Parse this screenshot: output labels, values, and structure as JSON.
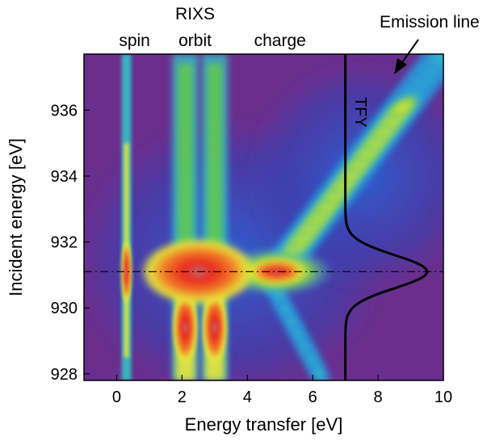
{
  "chart_data": {
    "type": "heatmap",
    "title": "",
    "xlabel": "Energy transfer [eV]",
    "ylabel": "Incident energy [eV]",
    "xlim": [
      -1,
      10
    ],
    "ylim": [
      927.8,
      937.7
    ],
    "x_ticks": [
      0,
      2,
      4,
      6,
      8,
      10
    ],
    "y_ticks": [
      928,
      930,
      932,
      934,
      936
    ],
    "grid": false,
    "colormap": [
      "#6a2f8e",
      "#2f3fb0",
      "#2a8fd8",
      "#33c8c8",
      "#66cc44",
      "#e8e63a",
      "#f0a030",
      "#e8261e"
    ],
    "group_title": "RIXS",
    "regions": [
      {
        "label": "spin",
        "x": 0.3
      },
      {
        "label": "orbit",
        "x": 2.4
      },
      {
        "label": "charge",
        "x": 5.0
      }
    ],
    "features": {
      "resonance_energy": 931.1,
      "spin_excitation_x": 0.3,
      "orbit_excitations_x": [
        2.1,
        3.0
      ],
      "charge_excitation_x": 4.9
    },
    "tfy_curve": {
      "label": "TFY",
      "baseline_x": 7.0,
      "peak_x": 9.5,
      "center": 931.1,
      "width": 0.5
    },
    "emission_line": {
      "label": "Emission line",
      "y": [
        931.2,
        937.7
      ],
      "x": [
        5.0,
        10.0
      ]
    },
    "reference_line": {
      "y": 931.1,
      "style": "dash-dot"
    }
  }
}
